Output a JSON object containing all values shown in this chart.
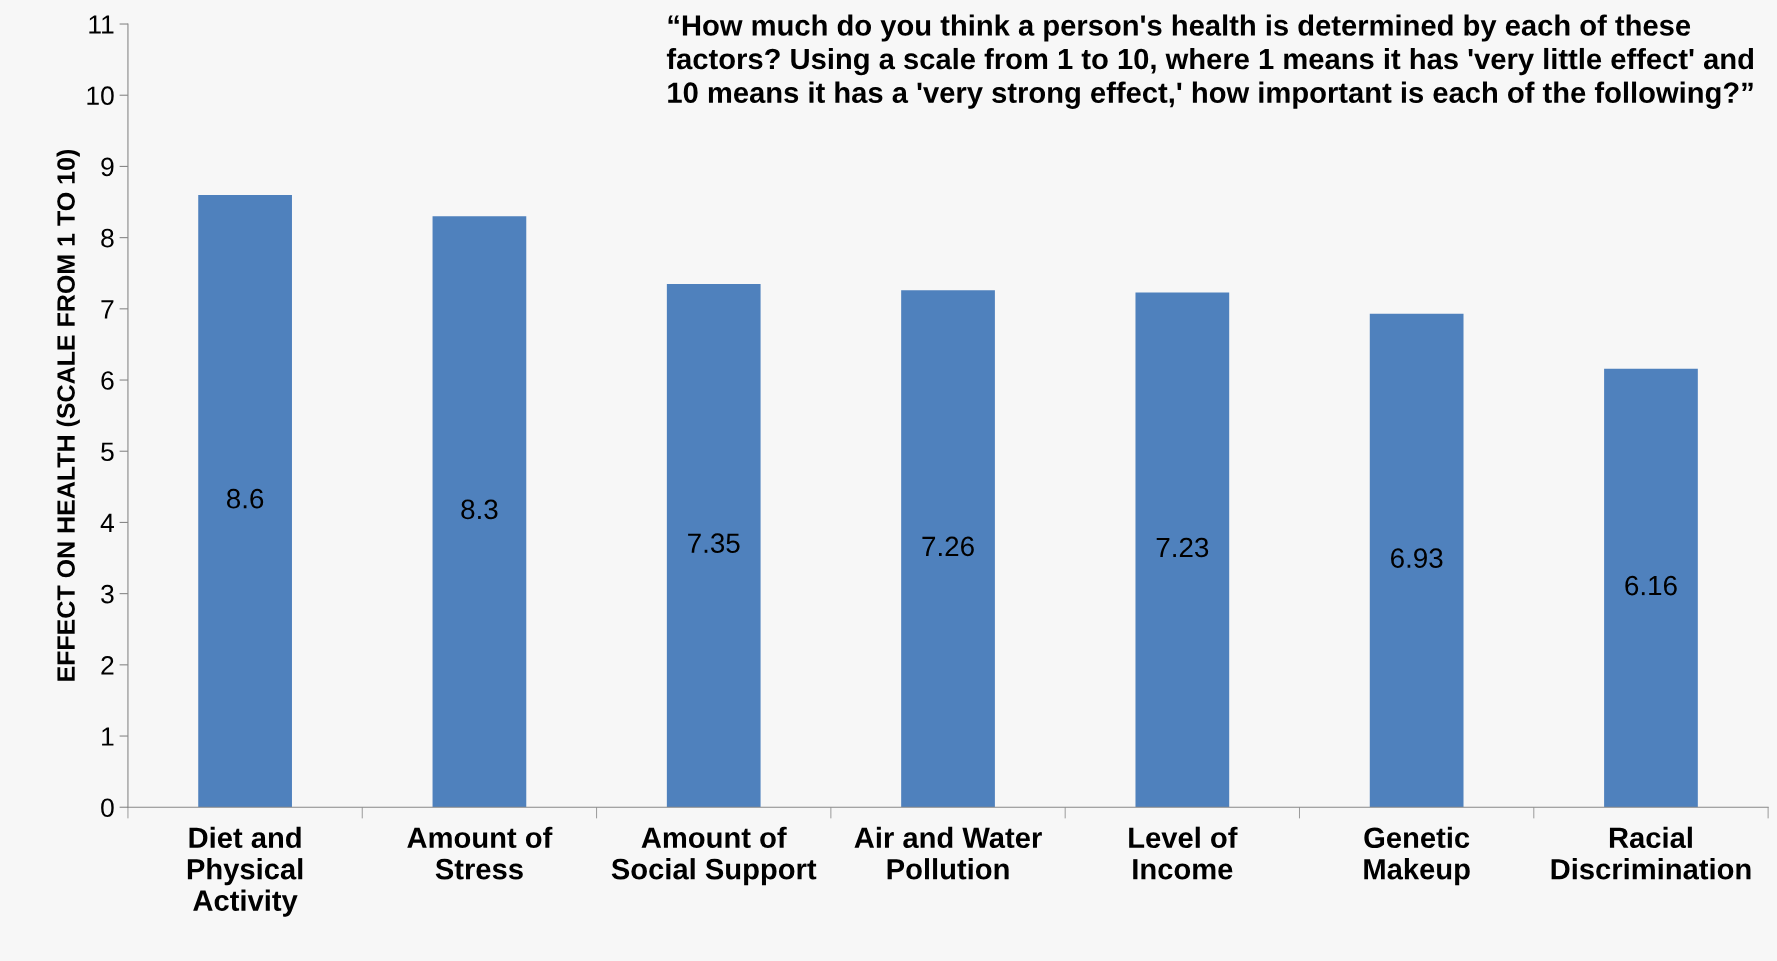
{
  "chart_data": {
    "type": "bar",
    "title": "“How much do you think a person's health is determined by each of these factors? Using a scale from 1 to 10, where 1 means it has 'very little effect' and 10 means it has a 'very strong effect,' how important is each of the following?”",
    "ylabel": "EFFECT ON HEALTH (SCALE FROM 1 TO 10)",
    "categories": [
      "Diet and\nPhysical\nActivity",
      "Amount of\nStress",
      "Amount of\nSocial Support",
      "Air and Water\nPollution",
      "Level of\nIncome",
      "Genetic\nMakeup",
      "Racial\nDiscrimination"
    ],
    "values": [
      8.6,
      8.3,
      7.35,
      7.26,
      7.23,
      6.93,
      6.16
    ],
    "color": "#4f81bd",
    "ylim": [
      0,
      11
    ],
    "yticks": [
      0,
      1,
      2,
      3,
      4,
      5,
      6,
      7,
      8,
      9,
      10,
      11
    ],
    "data_labels": true,
    "grid": false
  }
}
